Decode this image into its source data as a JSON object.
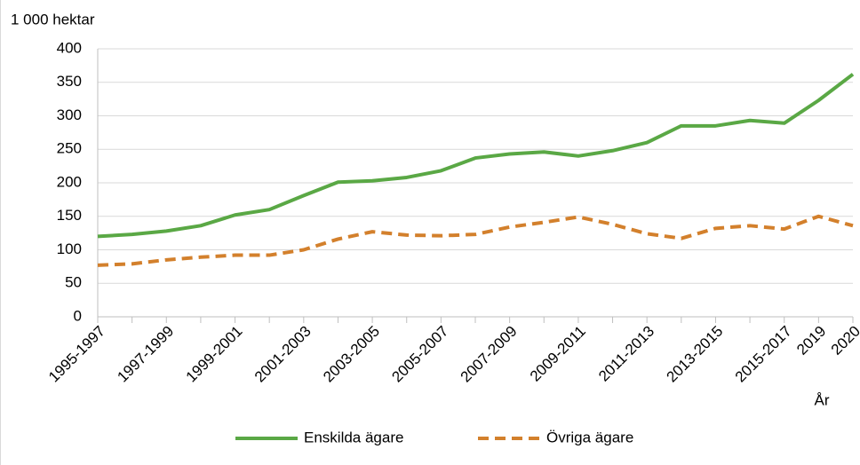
{
  "chart_data": {
    "type": "line",
    "y_label": "1 000 hektar",
    "x_label": "År",
    "categories": [
      "1995-1997",
      null,
      "1997-1999",
      null,
      "1999-2001",
      null,
      "2001-2003",
      null,
      "2003-2005",
      null,
      "2005-2007",
      null,
      "2007-2009",
      null,
      "2009-2011",
      null,
      "2011-2013",
      null,
      "2013-2015",
      null,
      "2015-2017",
      "2019",
      "2020"
    ],
    "series": [
      {
        "name": "Enskilda ägare",
        "color": "#5aa845",
        "dash": false,
        "values": [
          120,
          123,
          128,
          136,
          152,
          160,
          181,
          201,
          203,
          208,
          218,
          237,
          243,
          246,
          240,
          248,
          260,
          285,
          285,
          293,
          289,
          323,
          362
        ]
      },
      {
        "name": "Övriga ägare",
        "color": "#d3802c",
        "dash": true,
        "values": [
          77,
          79,
          85,
          89,
          92,
          92,
          100,
          116,
          127,
          122,
          121,
          123,
          134,
          141,
          149,
          138,
          124,
          117,
          132,
          136,
          131,
          150,
          136
        ]
      }
    ],
    "ylim": [
      0,
      400
    ],
    "yticks": [
      0,
      50,
      100,
      150,
      200,
      250,
      300,
      350,
      400
    ],
    "grid": true
  }
}
